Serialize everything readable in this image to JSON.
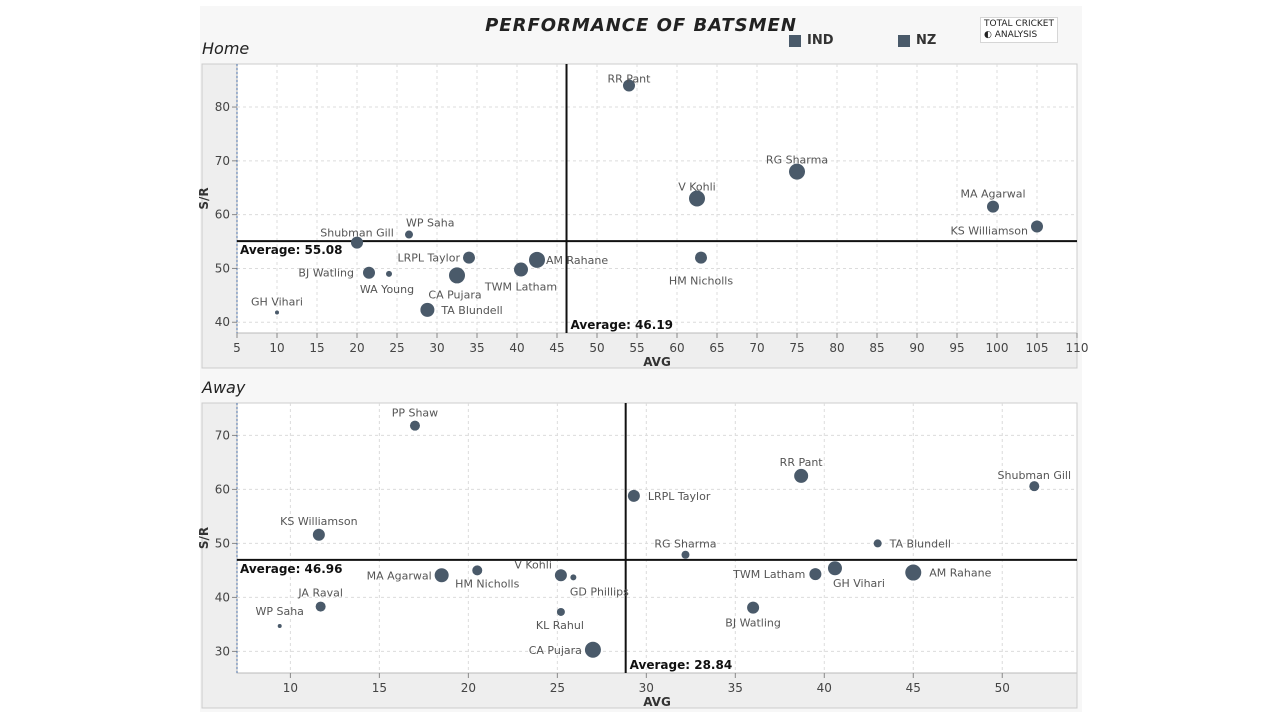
{
  "header": {
    "title": "PERFORMANCE OF BATSMEN",
    "legend": [
      {
        "label": "IND",
        "color": "#4a5a6a"
      },
      {
        "label": "NZ",
        "color": "#4a5a6a"
      }
    ],
    "logo": {
      "line1": "TOTAL CRICKET",
      "line2": "ANALYSIS"
    }
  },
  "chart_data": [
    {
      "type": "scatter",
      "title": "Home",
      "xlabel": "AVG",
      "ylabel": "S/R",
      "xlim": [
        5,
        110
      ],
      "ylim": [
        38,
        88
      ],
      "xticks": [
        5,
        10,
        15,
        20,
        25,
        30,
        35,
        40,
        45,
        50,
        55,
        60,
        65,
        70,
        75,
        80,
        85,
        90,
        95,
        100,
        105,
        110
      ],
      "yticks": [
        40,
        50,
        60,
        70,
        80
      ],
      "grid": true,
      "color": "#4a5a6a",
      "ref_x": {
        "value": 46.19,
        "label": "Average: 46.19"
      },
      "ref_y": {
        "value": 55.08,
        "label": "Average: 55.08"
      },
      "points": [
        {
          "name": "RR Pant",
          "x": 54,
          "y": 84,
          "size": 6
        },
        {
          "name": "RG Sharma",
          "x": 75,
          "y": 68,
          "size": 8
        },
        {
          "name": "V Kohli",
          "x": 62.5,
          "y": 63,
          "size": 8
        },
        {
          "name": "MA Agarwal",
          "x": 99.5,
          "y": 61.5,
          "size": 6
        },
        {
          "name": "KS Williamson",
          "x": 105,
          "y": 57.8,
          "size": 6
        },
        {
          "name": "WP Saha",
          "x": 26.5,
          "y": 56.3,
          "size": 4
        },
        {
          "name": "Shubman Gill",
          "x": 20,
          "y": 54.8,
          "size": 6
        },
        {
          "name": "LRPL Taylor",
          "x": 34,
          "y": 52,
          "size": 6
        },
        {
          "name": "AM Rahane",
          "x": 42.5,
          "y": 51.6,
          "size": 8
        },
        {
          "name": "HM Nicholls",
          "x": 63,
          "y": 52,
          "size": 6
        },
        {
          "name": "TWM Latham",
          "x": 40.5,
          "y": 49.8,
          "size": 7
        },
        {
          "name": "BJ Watling",
          "x": 21.5,
          "y": 49.2,
          "size": 6
        },
        {
          "name": "WA Young",
          "x": 24,
          "y": 49,
          "size": 3
        },
        {
          "name": "CA Pujara",
          "x": 32.5,
          "y": 48.7,
          "size": 8
        },
        {
          "name": "TA Blundell",
          "x": 28.8,
          "y": 42.3,
          "size": 7
        },
        {
          "name": "GH Vihari",
          "x": 10,
          "y": 41.8,
          "size": 2
        }
      ]
    },
    {
      "type": "scatter",
      "title": "Away",
      "xlabel": "AVG",
      "ylabel": "S/R",
      "xlim": [
        7,
        54.2
      ],
      "ylim": [
        26,
        76
      ],
      "xticks": [
        10,
        15,
        20,
        25,
        30,
        35,
        40,
        45,
        50
      ],
      "yticks": [
        30,
        40,
        50,
        60,
        70
      ],
      "grid": true,
      "color": "#4a5a6a",
      "ref_x": {
        "value": 28.84,
        "label": "Average: 28.84"
      },
      "ref_y": {
        "value": 46.96,
        "label": "Average: 46.96"
      },
      "points": [
        {
          "name": "PP Shaw",
          "x": 17,
          "y": 71.8,
          "size": 5
        },
        {
          "name": "RR Pant",
          "x": 38.7,
          "y": 62.5,
          "size": 7
        },
        {
          "name": "Shubman Gill",
          "x": 51.8,
          "y": 60.6,
          "size": 5
        },
        {
          "name": "LRPL Taylor",
          "x": 29.3,
          "y": 58.8,
          "size": 6
        },
        {
          "name": "KS Williamson",
          "x": 11.6,
          "y": 51.6,
          "size": 6
        },
        {
          "name": "TA Blundell",
          "x": 43,
          "y": 50,
          "size": 4
        },
        {
          "name": "RG Sharma",
          "x": 32.2,
          "y": 47.9,
          "size": 4
        },
        {
          "name": "AM Rahane",
          "x": 45,
          "y": 44.6,
          "size": 8
        },
        {
          "name": "GH Vihari",
          "x": 40.6,
          "y": 45.4,
          "size": 7
        },
        {
          "name": "TWM Latham",
          "x": 39.5,
          "y": 44.3,
          "size": 6
        },
        {
          "name": "MA Agarwal",
          "x": 18.5,
          "y": 44.1,
          "size": 7
        },
        {
          "name": "HM Nicholls",
          "x": 20.5,
          "y": 45,
          "size": 5
        },
        {
          "name": "V Kohli",
          "x": 25.2,
          "y": 44.1,
          "size": 6
        },
        {
          "name": "GD Phillips",
          "x": 25.9,
          "y": 43.7,
          "size": 3
        },
        {
          "name": "JA Raval",
          "x": 11.7,
          "y": 38.3,
          "size": 5
        },
        {
          "name": "BJ Watling",
          "x": 36,
          "y": 38.1,
          "size": 6
        },
        {
          "name": "KL Rahul",
          "x": 25.2,
          "y": 37.3,
          "size": 4
        },
        {
          "name": "WP Saha",
          "x": 9.4,
          "y": 34.7,
          "size": 2
        },
        {
          "name": "CA Pujara",
          "x": 27,
          "y": 30.3,
          "size": 8
        }
      ]
    }
  ]
}
